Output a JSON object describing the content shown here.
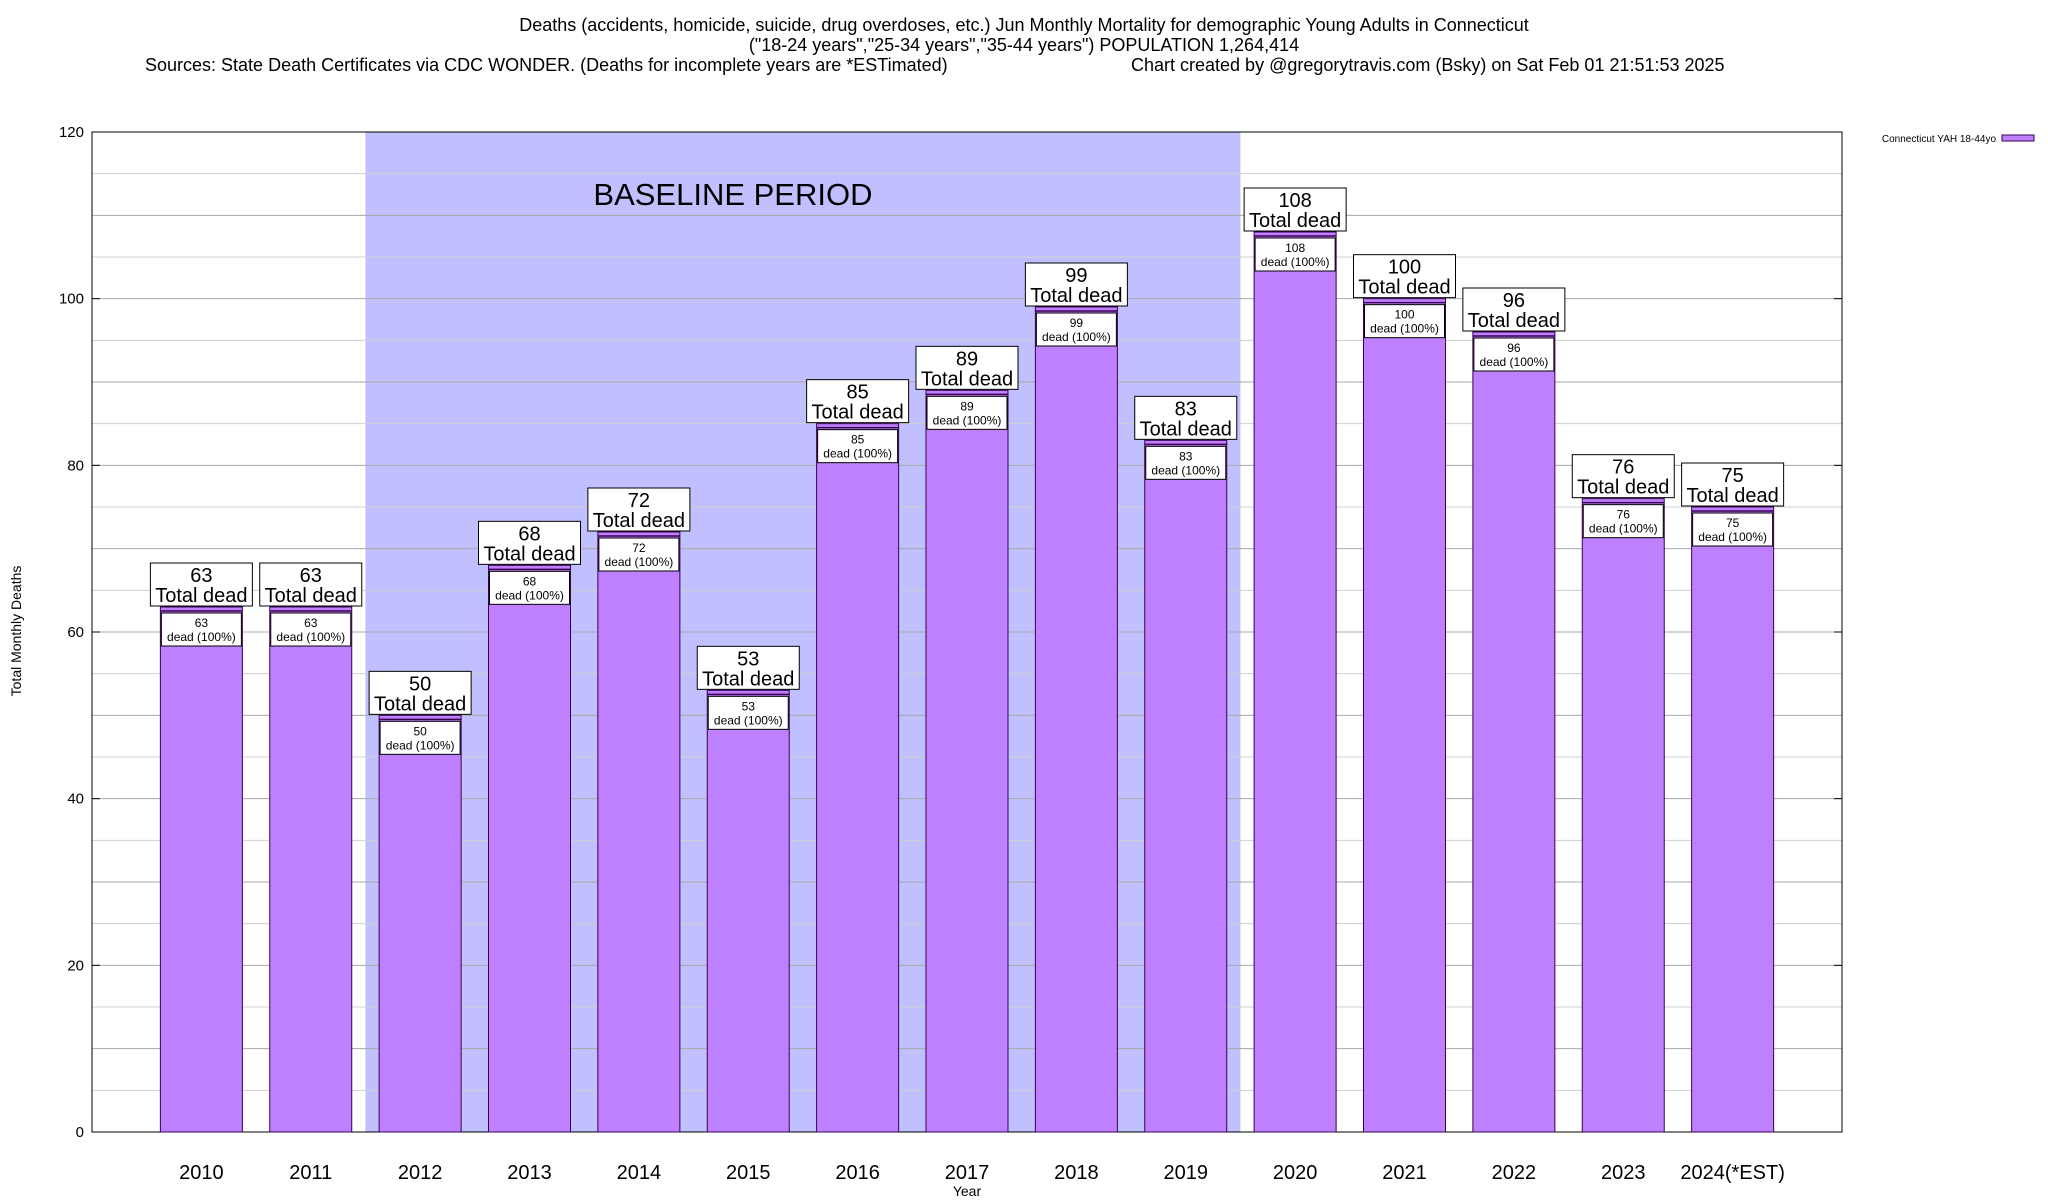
{
  "chart_data": {
    "type": "bar",
    "title_lines": [
      "Deaths (accidents, homicide, suicide, drug overdoses, etc.) Jun Monthly Mortality for demographic Young Adults in Connecticut",
      "(\"18-24 years\",\"25-34 years\",\"35-44 years\") POPULATION 1,264,414"
    ],
    "sources": "Sources: State Death Certificates via CDC WONDER. (Deaths for incomplete years are *ESTimated)",
    "credit": "Chart created by @gregorytravis.com (Bsky) on Sat Feb 01 21:51:53 2025",
    "xlabel": "Year",
    "ylabel": "Total Monthly Deaths",
    "ylim": [
      0,
      120
    ],
    "yticks": [
      0,
      20,
      40,
      60,
      80,
      100,
      120
    ],
    "categories": [
      "2010",
      "2011",
      "2012",
      "2013",
      "2014",
      "2015",
      "2016",
      "2017",
      "2018",
      "2019",
      "2020",
      "2021",
      "2022",
      "2023",
      "2024(*EST)"
    ],
    "series": [
      {
        "name": "Connecticut YAH 18-44yo",
        "color": "#bf80ff",
        "values": [
          63,
          63,
          50,
          68,
          72,
          53,
          85,
          89,
          99,
          83,
          108,
          100,
          96,
          76,
          75
        ]
      }
    ],
    "top_labels": [
      "63",
      "63",
      "50",
      "68",
      "72",
      "53",
      "85",
      "89",
      "99",
      "83",
      "108",
      "100",
      "96",
      "76",
      "75"
    ],
    "top_label_suffix": "Total dead",
    "inner_label_suffix": "dead (100%)",
    "baseline": {
      "label": "BASELINE PERIOD",
      "from": "2012",
      "to": "2019",
      "color": "#c0c0ff"
    },
    "grid": true,
    "legend_position": "top-right",
    "line_color": "#3b0050"
  }
}
